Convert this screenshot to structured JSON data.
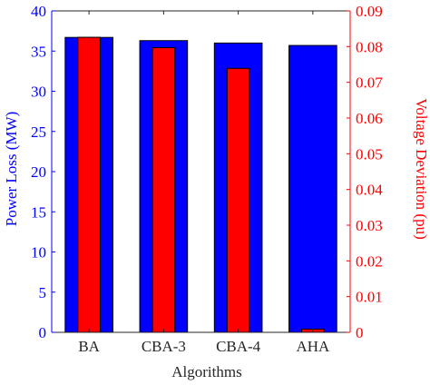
{
  "chart_data": {
    "type": "bar",
    "title": "",
    "xlabel": "Algorithms",
    "categories": [
      "BA",
      "CBA-3",
      "CBA-4",
      "AHA"
    ],
    "y_left": {
      "label": "Power Loss (MW)",
      "lim": [
        0,
        40
      ],
      "ticks": [
        0,
        5,
        10,
        15,
        20,
        25,
        30,
        35,
        40
      ],
      "tick_labels": [
        "0",
        "5",
        "10",
        "15",
        "20",
        "25",
        "30",
        "35",
        "40"
      ],
      "color": "#0000ff"
    },
    "y_right": {
      "label": "Voltage Deviation (pu)",
      "lim": [
        0,
        0.09
      ],
      "ticks": [
        0,
        0.01,
        0.02,
        0.03,
        0.04,
        0.05,
        0.06,
        0.07,
        0.08,
        0.09
      ],
      "tick_labels": [
        "0",
        "0.01",
        "0.02",
        "0.03",
        "0.04",
        "0.05",
        "0.06",
        "0.07",
        "0.08",
        "0.09"
      ],
      "color": "#ff0000"
    },
    "series": [
      {
        "name": "Power Loss (MW)",
        "axis": "left",
        "color": "#0000ff",
        "values": [
          36.7,
          36.3,
          36.0,
          35.7
        ]
      },
      {
        "name": "Voltage Deviation (pu)",
        "axis": "right",
        "color": "#ff0000",
        "values": [
          0.0826,
          0.0797,
          0.0739,
          0.0009
        ]
      }
    ],
    "grid": false,
    "legend": "none"
  }
}
